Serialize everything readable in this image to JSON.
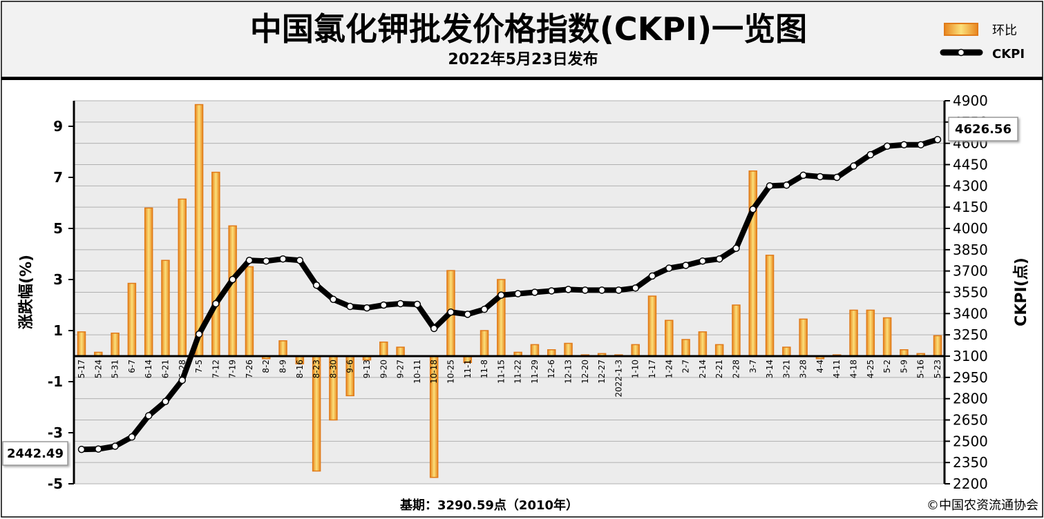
{
  "chart_data": {
    "type": "bar+line",
    "title": "中国氯化钾批发价格指数(CKPI)一览图",
    "subtitle": "2022年5月23日发布",
    "legend": [
      {
        "label": "环比",
        "kind": "bar"
      },
      {
        "label": "CKPI",
        "kind": "line"
      }
    ],
    "legend_position": "top-right",
    "ylabel_left": "涨跌幅(%)",
    "ylabel_right": "CKPI(点)",
    "left_axis": {
      "min": -5,
      "max": 10,
      "ticks": [
        9,
        7,
        5,
        3,
        1,
        -1,
        -3,
        -5
      ]
    },
    "right_axis": {
      "min": 2200,
      "max": 4900,
      "ticks": [
        4900,
        4750,
        4600,
        4450,
        4300,
        4150,
        4000,
        3850,
        3700,
        3550,
        3400,
        3250,
        3100,
        2950,
        2800,
        2650,
        2500,
        2350,
        2200
      ]
    },
    "grid": true,
    "categories": [
      "5-17",
      "5-24",
      "5-31",
      "6-7",
      "6-14",
      "6-21",
      "6-28",
      "7-5",
      "7-12",
      "7-19",
      "7-26",
      "8-2",
      "8-9",
      "8-16",
      "8-23",
      "8-30",
      "9-6",
      "9-13",
      "9-20",
      "9-27",
      "10-11",
      "10-18",
      "10-25",
      "11-1",
      "11-8",
      "11-15",
      "11-22",
      "11-29",
      "12-6",
      "12-13",
      "12-20",
      "12-27",
      "2022-1-3",
      "1-10",
      "1-17",
      "1-24",
      "2-7",
      "2-14",
      "2-21",
      "2-28",
      "3-7",
      "3-14",
      "3-21",
      "3-28",
      "4-4",
      "4-11",
      "4-18",
      "4-25",
      "5-2",
      "5-9",
      "5-16",
      "5-23"
    ],
    "series": [
      {
        "name": "环比",
        "type": "bar",
        "axis": "left",
        "values": [
          0.95,
          0.15,
          0.9,
          2.85,
          5.8,
          3.75,
          6.15,
          9.85,
          7.2,
          5.1,
          3.5,
          -0.1,
          0.6,
          -0.3,
          -4.5,
          -2.5,
          -1.55,
          -0.15,
          0.55,
          0.35,
          0.0,
          -4.75,
          3.35,
          -0.25,
          1.0,
          3.0,
          0.15,
          0.45,
          0.25,
          0.5,
          0.05,
          0.1,
          0.05,
          0.45,
          2.35,
          1.4,
          0.65,
          0.95,
          0.45,
          2.0,
          7.25,
          3.95,
          0.35,
          1.45,
          -0.1,
          0.05,
          1.8,
          1.8,
          1.5,
          0.25,
          0.1,
          0.8
        ]
      },
      {
        "name": "CKPI",
        "type": "line",
        "axis": "right",
        "values": [
          2442.49,
          2445,
          2465,
          2530,
          2680,
          2780,
          2930,
          3255,
          3470,
          3640,
          3775,
          3770,
          3785,
          3775,
          3600,
          3500,
          3450,
          3440,
          3460,
          3470,
          3465,
          3295,
          3410,
          3395,
          3430,
          3530,
          3540,
          3550,
          3560,
          3570,
          3565,
          3565,
          3565,
          3580,
          3665,
          3720,
          3740,
          3770,
          3785,
          3860,
          4135,
          4300,
          4305,
          4375,
          4365,
          4360,
          4440,
          4520,
          4580,
          4590,
          4590,
          4626.56
        ]
      }
    ],
    "annotations": {
      "start_value": "2442.49",
      "end_value": "4626.56"
    },
    "footer": {
      "base_period": "基期：3290.59点（2010年）",
      "copyright": "©中国农资流通协会"
    }
  },
  "colors": {
    "bar_fill": "#f7c95a",
    "bar_edge": "#e07b1a",
    "line": "#000000",
    "plot_bg": "#ececec",
    "header_bg": "#f2f2f2"
  }
}
